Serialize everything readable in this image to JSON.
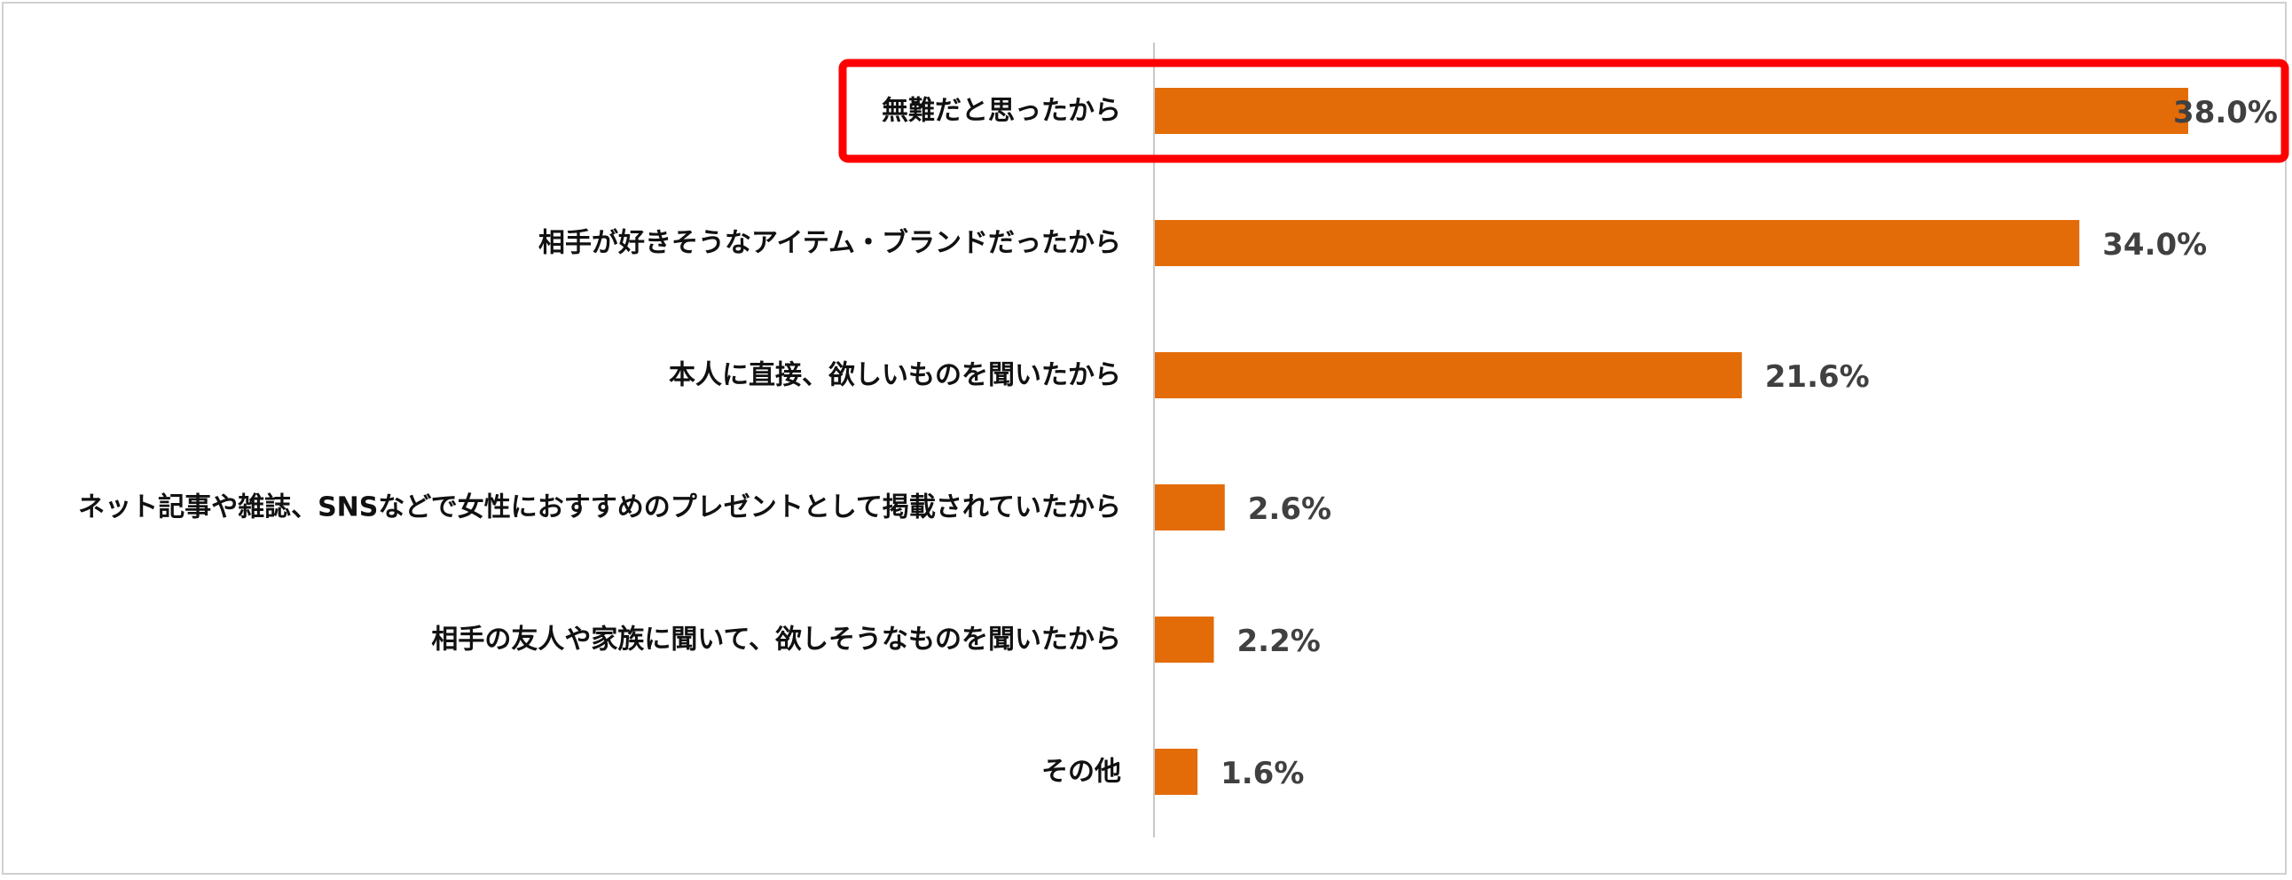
{
  "chart_data": {
    "type": "bar",
    "orientation": "horizontal",
    "categories": [
      "無難だと思ったから",
      "相手が好きそうなアイテム・ブランドだったから",
      "本人に直接、欲しいものを聞いたから",
      "ネット記事や雑誌、SNSなどで女性におすすめのプレゼントとして掲載されていたから",
      "相手の友人や家族に聞いて、欲しそうなものを聞いたから",
      "その他"
    ],
    "values": [
      38.0,
      34.0,
      21.6,
      2.6,
      2.2,
      1.6
    ],
    "value_labels": [
      "38.0%",
      "34.0%",
      "21.6%",
      "2.6%",
      "2.2%",
      "1.6%"
    ],
    "bar_color": "#E36C09",
    "highlight_color": "#FF0000",
    "highlight_index": 0,
    "xlim": [
      0,
      40
    ],
    "grid": false,
    "legend": "none"
  }
}
